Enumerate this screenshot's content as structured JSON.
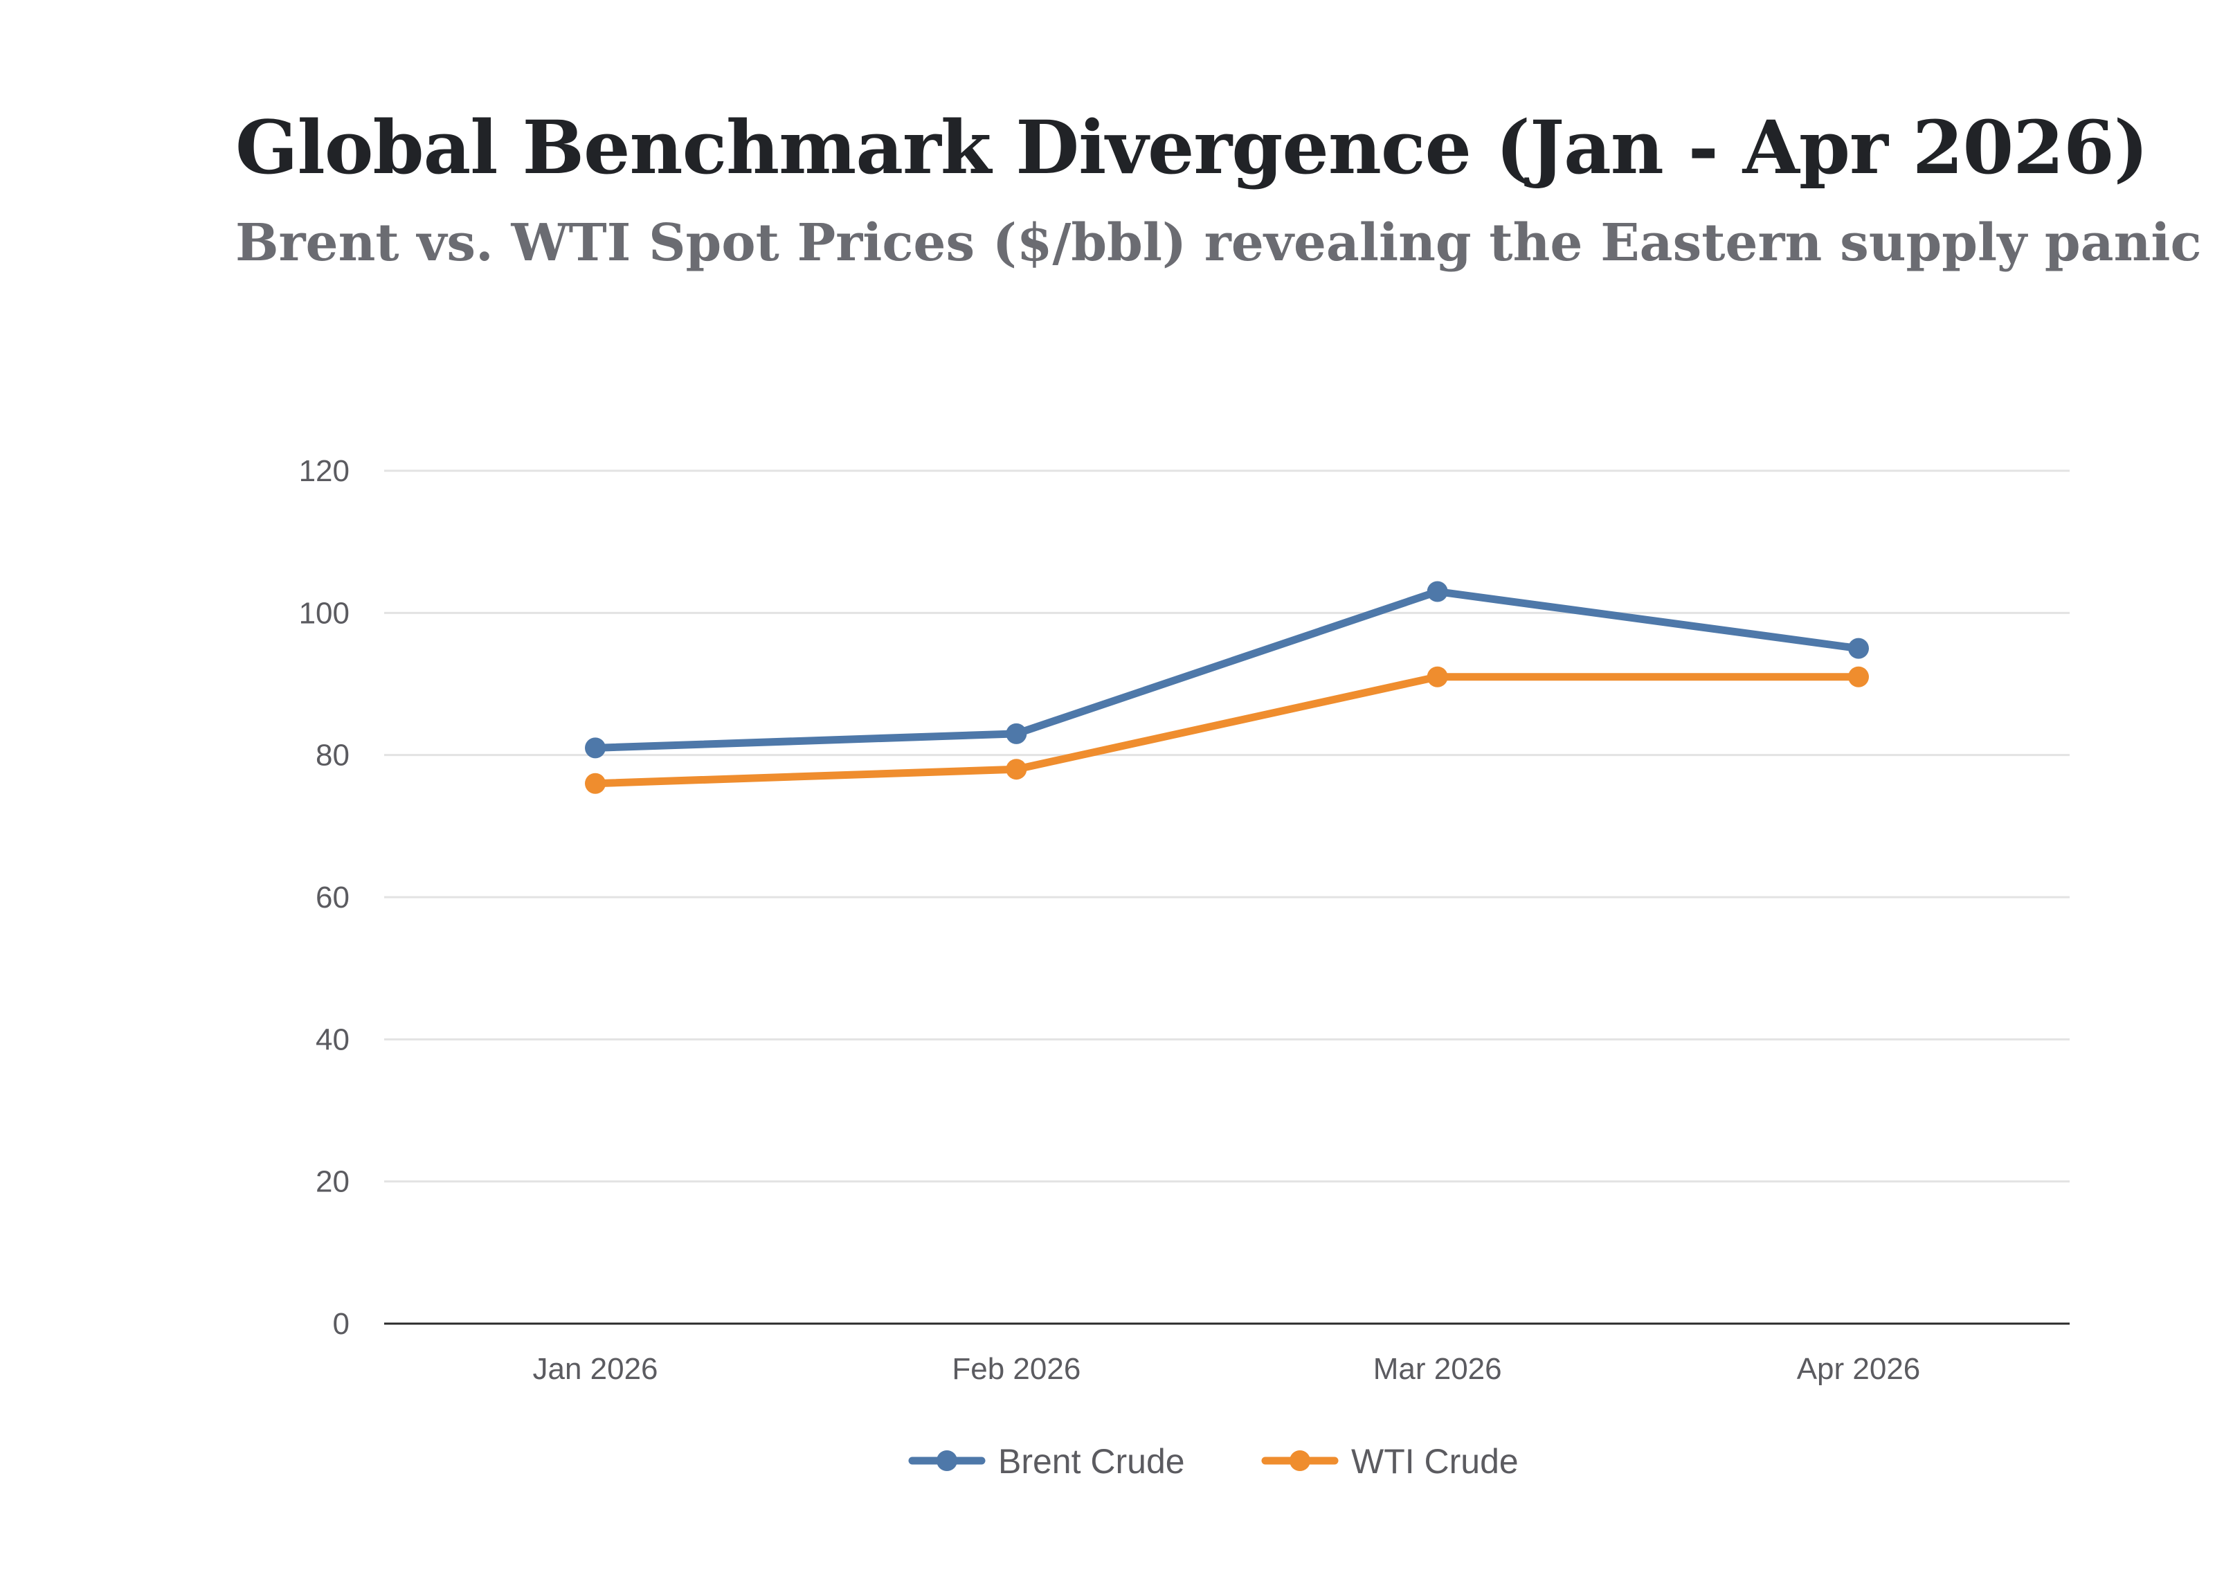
{
  "chart_data": {
    "type": "line",
    "title": "Global Benchmark Divergence (Jan - Apr 2026)",
    "subtitle": "Brent vs. WTI Spot Prices ($/bbl) revealing the Eastern supply panic",
    "categories": [
      "Jan 2026",
      "Feb 2026",
      "Mar 2026",
      "Apr 2026"
    ],
    "series": [
      {
        "name": "Brent Crude",
        "color": "#4e78a9",
        "values": [
          81,
          83,
          103,
          95
        ]
      },
      {
        "name": "WTI Crude",
        "color": "#ef8d2e",
        "values": [
          76,
          78,
          91,
          91
        ]
      }
    ],
    "ylim": [
      0,
      120
    ],
    "yticks": [
      0,
      20,
      40,
      60,
      80,
      100,
      120
    ],
    "xlabel": "",
    "ylabel": "",
    "grid": true,
    "legend_position": "bottom-center"
  }
}
